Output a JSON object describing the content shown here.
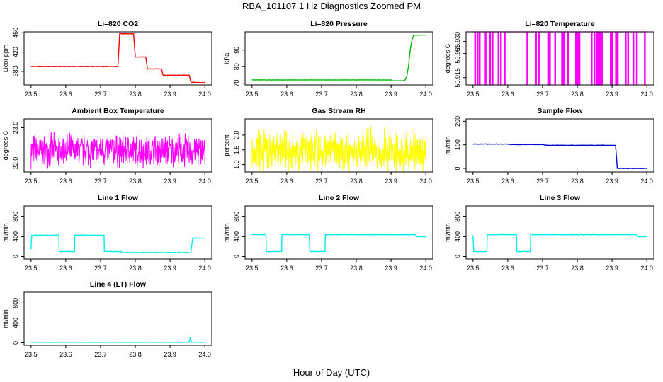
{
  "figure": {
    "title": "RBA_101107  1 Hz Diagnostics Zoomed PM",
    "xlabel": "Hour of Day (UTC)"
  },
  "chart_data": [
    {
      "id": "co2",
      "type": "line",
      "title": "Li–820 CO2",
      "ylabel": "Licor ppm",
      "color": "#ff0000",
      "xlim": [
        23.48,
        24.02
      ],
      "ylim": [
        352,
        462
      ],
      "xticks": [
        "23.5",
        "23.6",
        "23.7",
        "23.8",
        "23.9",
        "24.0"
      ],
      "yticks": [
        "380",
        "420",
        "460"
      ],
      "x": [
        23.5,
        23.75,
        23.755,
        23.795,
        23.8,
        23.83,
        23.835,
        23.875,
        23.88,
        23.955,
        23.96,
        23.975,
        24.0
      ],
      "y": [
        390,
        390,
        458,
        458,
        410,
        410,
        385,
        385,
        372,
        372,
        358,
        357,
        357
      ],
      "noise": 1.0
    },
    {
      "id": "pressure",
      "type": "line",
      "title": "Li–820 Pressure",
      "ylabel": "kPa",
      "color": "#00bb00",
      "xlim": [
        23.48,
        24.02
      ],
      "ylim": [
        69,
        101
      ],
      "xticks": [
        "23.5",
        "23.6",
        "23.7",
        "23.8",
        "23.9",
        "24.0"
      ],
      "yticks": [
        "70",
        "80",
        "90"
      ],
      "x": [
        23.5,
        23.9,
        23.905,
        23.935,
        23.94,
        23.945,
        23.95,
        23.955,
        23.96,
        23.965,
        23.97,
        24.0
      ],
      "y": [
        72,
        72,
        71.5,
        71.5,
        72,
        74,
        80,
        90,
        96,
        99,
        99,
        99
      ],
      "noise": 0.15
    },
    {
      "id": "temperature",
      "type": "line",
      "title": "Li–820 Temperature",
      "ylabel": "degrees C",
      "color": "#ff00ff",
      "xlim": [
        23.48,
        24.02
      ],
      "ylim": [
        50.912,
        50.934
      ],
      "xticks": [
        "23.5",
        "23.6",
        "23.7",
        "23.8",
        "23.9",
        "24.0"
      ],
      "yticks": [
        "50.915",
        "50.925",
        "50.930"
      ],
      "x": [
        23.5,
        24.0
      ],
      "y": [
        50.934,
        50.934
      ],
      "drop_x": [
        23.505,
        23.512,
        23.518,
        23.535,
        23.548,
        23.555,
        23.572,
        23.579,
        23.59,
        23.655,
        23.68,
        23.688,
        23.715,
        23.72,
        23.735,
        23.755,
        23.76,
        23.772,
        23.795,
        23.8,
        23.805,
        23.84,
        23.848,
        23.855,
        23.86,
        23.865,
        23.87,
        23.895,
        23.9,
        23.91,
        23.915,
        23.938,
        23.945,
        23.96,
        23.97,
        23.993
      ],
      "drop_to": 50.912
    },
    {
      "id": "ambient",
      "type": "line",
      "title": "Ambient Box Temperature",
      "ylabel": "degrees C",
      "color": "#ff00ff",
      "xlim": [
        23.48,
        24.02
      ],
      "ylim": [
        21.75,
        23.25
      ],
      "xticks": [
        "23.5",
        "23.6",
        "23.7",
        "23.8",
        "23.9",
        "24.0"
      ],
      "yticks": [
        "22.0",
        "23.0"
      ],
      "x": [
        23.5,
        24.0
      ],
      "y": [
        22.35,
        22.35
      ],
      "noise": 0.55,
      "seed": 7
    },
    {
      "id": "rh",
      "type": "line",
      "title": "Gas Stream RH",
      "ylabel": "percent",
      "color": "#ffff00",
      "xlim": [
        23.48,
        24.02
      ],
      "ylim": [
        0.75,
        2.55
      ],
      "xticks": [
        "23.5",
        "23.6",
        "23.7",
        "23.8",
        "23.9",
        "24.0"
      ],
      "yticks": [
        "1.0",
        "1.5",
        "2.0"
      ],
      "x": [
        23.5,
        24.0
      ],
      "y": [
        1.45,
        1.45
      ],
      "noise": 0.85,
      "seed": 11
    },
    {
      "id": "sample",
      "type": "line",
      "title": "Sample Flow",
      "ylabel": "ml/min",
      "color": "#0000cc",
      "xlim": [
        23.48,
        24.02
      ],
      "ylim": [
        -15,
        210
      ],
      "xticks": [
        "23.5",
        "23.6",
        "23.7",
        "23.8",
        "23.9",
        "24.0"
      ],
      "yticks": [
        "0",
        "100",
        "200"
      ],
      "x": [
        23.5,
        23.6,
        23.61,
        23.7,
        23.71,
        23.91,
        23.915,
        24.0
      ],
      "y": [
        103,
        103,
        101,
        101,
        98,
        98,
        0,
        0
      ],
      "noise": 1.5
    },
    {
      "id": "line1",
      "type": "line",
      "title": "Line 1 Flow",
      "ylabel": "ml/min",
      "color": "#00eeee",
      "xlim": [
        23.48,
        24.02
      ],
      "ylim": [
        -50,
        1020
      ],
      "xticks": [
        "23.5",
        "23.6",
        "23.7",
        "23.8",
        "23.9",
        "24.0"
      ],
      "yticks": [
        "0",
        "400",
        "800"
      ],
      "x": [
        23.5,
        23.502,
        23.58,
        23.581,
        23.625,
        23.626,
        23.71,
        23.711,
        23.76,
        23.761,
        23.96,
        23.965,
        24.0
      ],
      "y": [
        150,
        430,
        430,
        100,
        100,
        430,
        430,
        100,
        100,
        80,
        80,
        370,
        370
      ],
      "noise": 12
    },
    {
      "id": "line2",
      "type": "line",
      "title": "Line 2 Flow",
      "ylabel": "ml/min",
      "color": "#00eeee",
      "xlim": [
        23.48,
        24.02
      ],
      "ylim": [
        -50,
        1020
      ],
      "xticks": [
        "23.5",
        "23.6",
        "23.7",
        "23.8",
        "23.9",
        "24.0"
      ],
      "yticks": [
        "0",
        "400",
        "800"
      ],
      "x": [
        23.5,
        23.54,
        23.541,
        23.585,
        23.586,
        23.665,
        23.666,
        23.71,
        23.711,
        23.97,
        23.975,
        24.0
      ],
      "y": [
        440,
        440,
        100,
        100,
        440,
        440,
        100,
        100,
        440,
        440,
        400,
        400
      ],
      "noise": 8
    },
    {
      "id": "line3",
      "type": "line",
      "title": "Line 3 Flow",
      "ylabel": "ml/min",
      "color": "#00eeee",
      "xlim": [
        23.48,
        24.02
      ],
      "ylim": [
        -50,
        1020
      ],
      "xticks": [
        "23.5",
        "23.6",
        "23.7",
        "23.8",
        "23.9",
        "24.0"
      ],
      "yticks": [
        "0",
        "400",
        "800"
      ],
      "x": [
        23.5,
        23.502,
        23.54,
        23.541,
        23.625,
        23.626,
        23.665,
        23.666,
        23.97,
        23.975,
        24.0
      ],
      "y": [
        420,
        100,
        100,
        440,
        440,
        100,
        100,
        440,
        440,
        400,
        400
      ],
      "noise": 8
    },
    {
      "id": "line4",
      "type": "line",
      "title": "Line 4 (LT) Flow",
      "ylabel": "ml/min",
      "color": "#00eeee",
      "xlim": [
        23.48,
        24.02
      ],
      "ylim": [
        -50,
        1020
      ],
      "xticks": [
        "23.5",
        "23.6",
        "23.7",
        "23.8",
        "23.9",
        "24.0"
      ],
      "yticks": [
        "0",
        "400",
        "800"
      ],
      "x": [
        23.5,
        23.955,
        23.958,
        23.961,
        23.964,
        24.0
      ],
      "y": [
        10,
        10,
        110,
        30,
        10,
        10
      ],
      "noise": 3
    }
  ]
}
